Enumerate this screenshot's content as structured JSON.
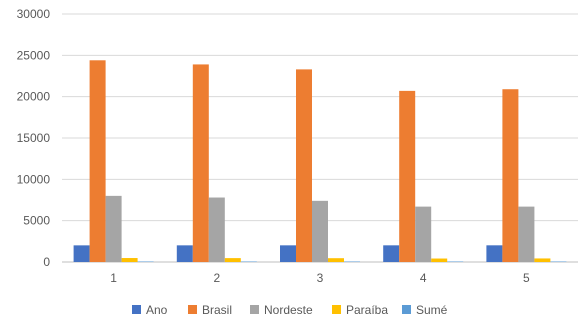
{
  "chart_data": {
    "type": "bar",
    "title": "",
    "xlabel": "",
    "ylabel": "",
    "categories": [
      "1",
      "2",
      "3",
      "4",
      "5"
    ],
    "ylim": [
      0,
      30000
    ],
    "yticks": [
      0,
      5000,
      10000,
      15000,
      20000,
      25000,
      30000
    ],
    "grid": true,
    "legend_position": "bottom",
    "series": [
      {
        "name": "Ano",
        "color": "#4472C4",
        "values": [
          2014,
          2015,
          2016,
          2017,
          2018
        ]
      },
      {
        "name": "Brasil",
        "color": "#ED7D31",
        "values": [
          24400,
          23900,
          23300,
          20700,
          20900
        ]
      },
      {
        "name": "Nordeste",
        "color": "#A5A5A5",
        "values": [
          8000,
          7800,
          7400,
          6700,
          6700
        ]
      },
      {
        "name": "Paraíba",
        "color": "#FFC000",
        "values": [
          480,
          470,
          460,
          420,
          430
        ]
      },
      {
        "name": "Sumé",
        "color": "#5B9BD5",
        "values": [
          3,
          3,
          3,
          3,
          3
        ]
      }
    ]
  }
}
